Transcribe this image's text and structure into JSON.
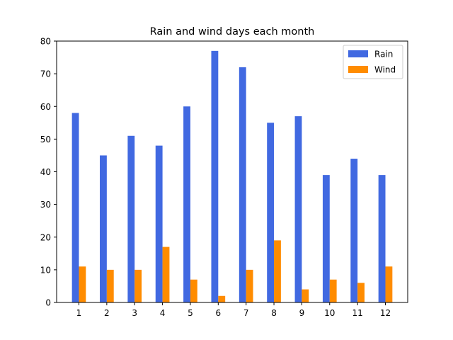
{
  "chart_data": {
    "type": "bar",
    "title": "Rain and wind days each month",
    "xlabel": "",
    "ylabel": "",
    "categories": [
      "1",
      "2",
      "3",
      "4",
      "5",
      "6",
      "7",
      "8",
      "9",
      "10",
      "11",
      "12"
    ],
    "series": [
      {
        "name": "Rain",
        "color": "#4169e1",
        "values": [
          58,
          45,
          51,
          48,
          60,
          77,
          72,
          55,
          57,
          39,
          44,
          39
        ]
      },
      {
        "name": "Wind",
        "color": "#ff8c00",
        "values": [
          11,
          10,
          10,
          17,
          7,
          2,
          10,
          19,
          4,
          7,
          6,
          11
        ]
      }
    ],
    "ylim": [
      0,
      80
    ],
    "yticks": [
      0,
      10,
      20,
      30,
      40,
      50,
      60,
      70,
      80
    ],
    "grid": false,
    "legend_position": "top-right"
  }
}
